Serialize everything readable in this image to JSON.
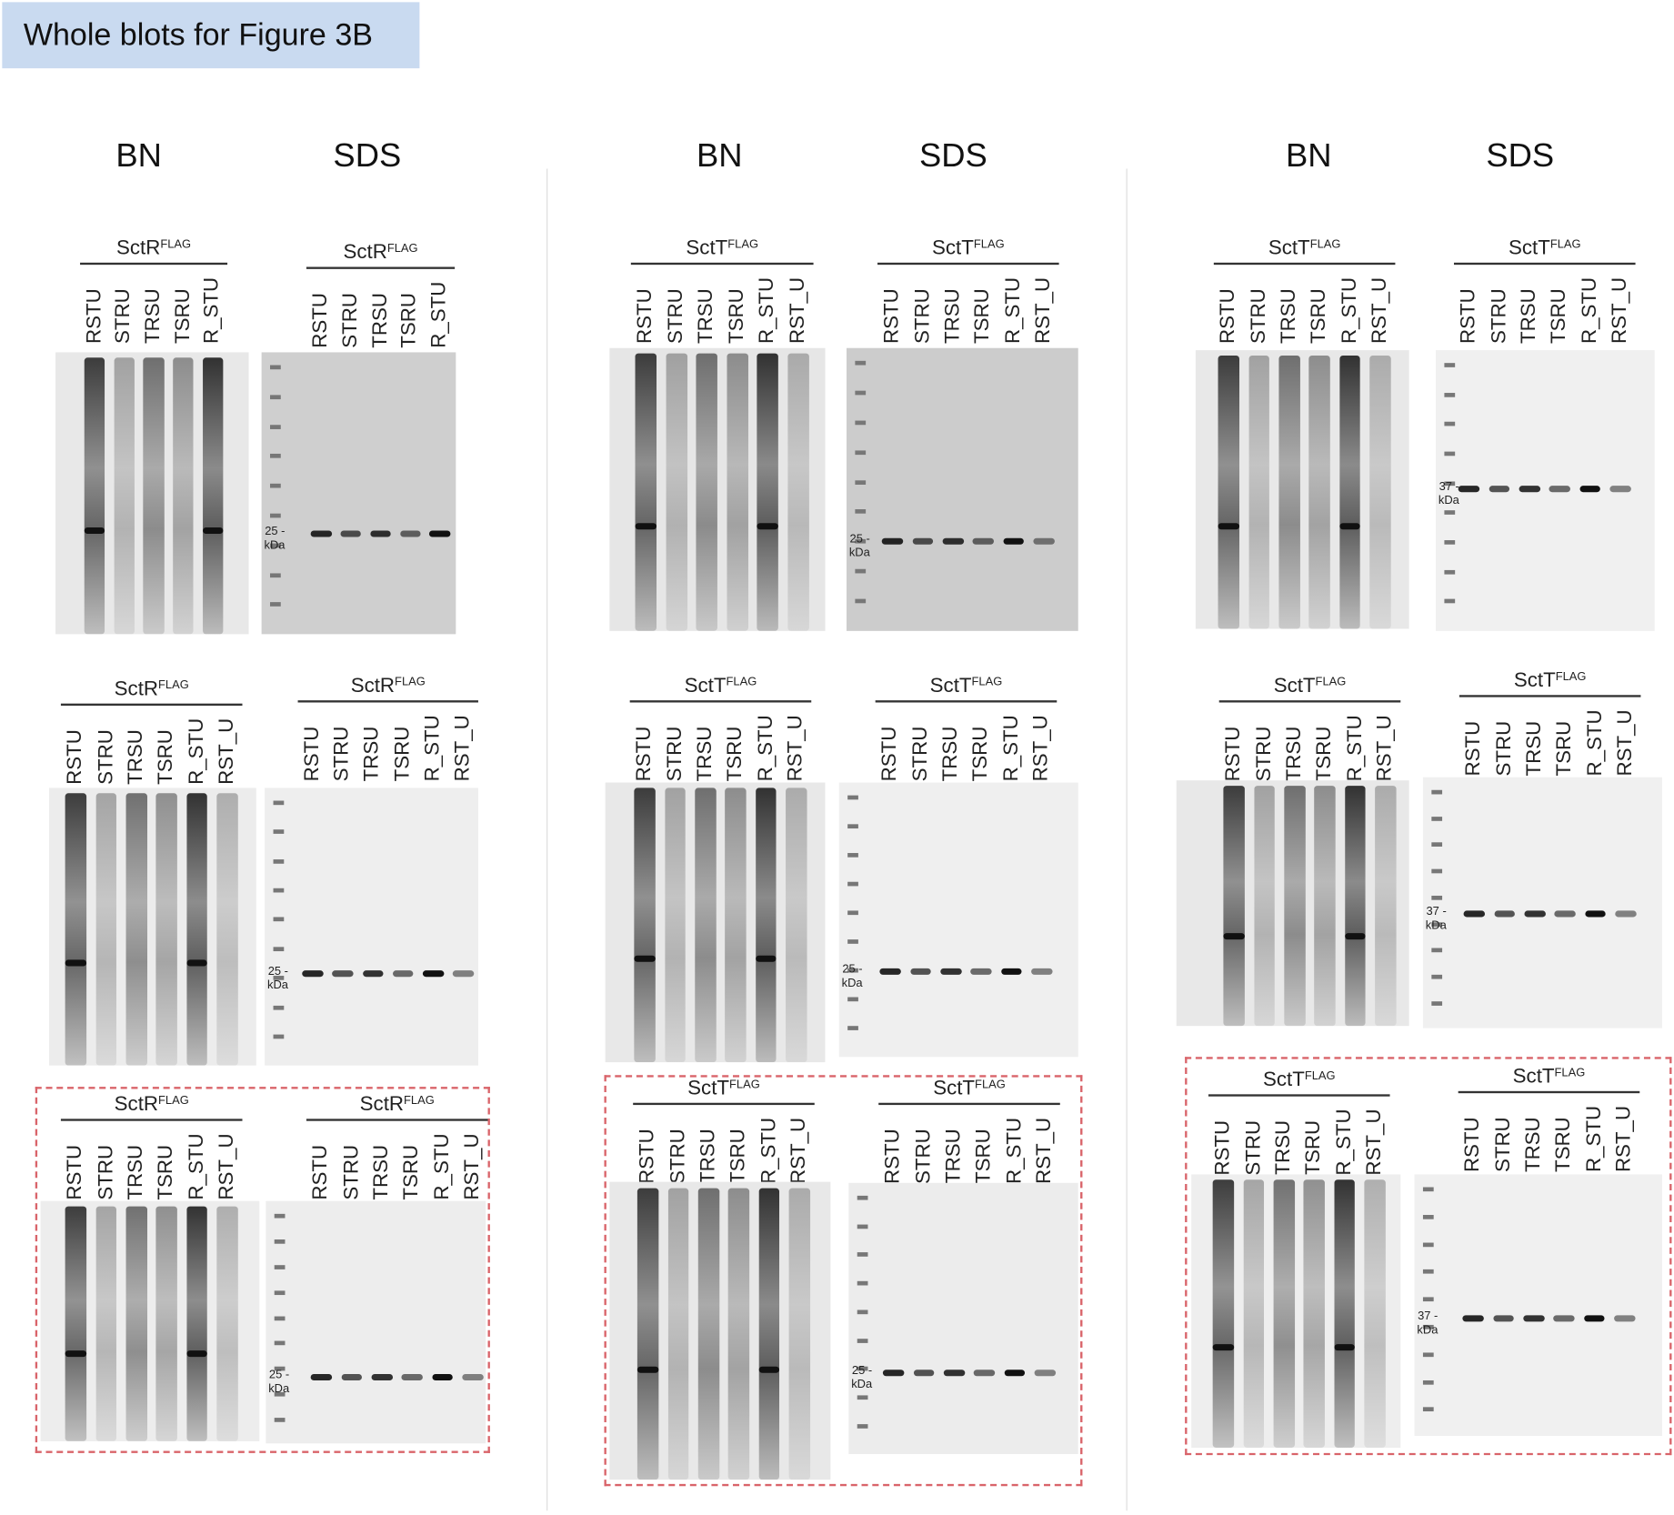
{
  "title": "Whole blots for Figure 3B",
  "column_headers": [
    "BN",
    "SDS",
    "BN",
    "SDS",
    "BN",
    "SDS"
  ],
  "panels": [
    {
      "type": "BN",
      "protein": "SctR",
      "tag": "FLAG",
      "lanes": [
        "RSTU",
        "STRU",
        "TRSU",
        "TSRU",
        "R_STU"
      ]
    },
    {
      "type": "SDS",
      "protein": "SctR",
      "tag": "FLAG",
      "lanes": [
        "RSTU",
        "STRU",
        "TRSU",
        "TSRU",
        "R_STU"
      ],
      "marker": "25 -",
      "unit": "kDa"
    },
    {
      "type": "BN",
      "protein": "SctR",
      "tag": "FLAG",
      "lanes": [
        "RSTU",
        "STRU",
        "TRSU",
        "TSRU",
        "R_STU",
        "RST_U"
      ]
    },
    {
      "type": "SDS",
      "protein": "SctR",
      "tag": "FLAG",
      "lanes": [
        "RSTU",
        "STRU",
        "TRSU",
        "TSRU",
        "R_STU",
        "RST_U"
      ],
      "marker": "25 -",
      "unit": "kDa"
    },
    {
      "type": "BN",
      "protein": "SctR",
      "tag": "FLAG",
      "lanes": [
        "RSTU",
        "STRU",
        "TRSU",
        "TSRU",
        "R_STU",
        "RST_U"
      ]
    },
    {
      "type": "SDS",
      "protein": "SctR",
      "tag": "FLAG",
      "lanes": [
        "RSTU",
        "STRU",
        "TRSU",
        "TSRU",
        "R_STU",
        "RST_U"
      ],
      "marker": "25 -",
      "unit": "kDa"
    },
    {
      "type": "BN",
      "protein": "SctT",
      "tag": "FLAG",
      "lanes": [
        "RSTU",
        "STRU",
        "TRSU",
        "TSRU",
        "R_STU",
        "RST_U"
      ]
    },
    {
      "type": "SDS",
      "protein": "SctT",
      "tag": "FLAG",
      "lanes": [
        "RSTU",
        "STRU",
        "TRSU",
        "TSRU",
        "R_STU",
        "RST_U"
      ],
      "marker": "25 -",
      "unit": "kDa"
    },
    {
      "type": "BN",
      "protein": "SctT",
      "tag": "FLAG",
      "lanes": [
        "RSTU",
        "STRU",
        "TRSU",
        "TSRU",
        "R_STU",
        "RST_U"
      ]
    },
    {
      "type": "SDS",
      "protein": "SctT",
      "tag": "FLAG",
      "lanes": [
        "RSTU",
        "STRU",
        "TRSU",
        "TSRU",
        "R_STU",
        "RST_U"
      ],
      "marker": "25 -",
      "unit": "kDa"
    },
    {
      "type": "BN",
      "protein": "SctT",
      "tag": "FLAG",
      "lanes": [
        "RSTU",
        "STRU",
        "TRSU",
        "TSRU",
        "R_STU",
        "RST_U"
      ]
    },
    {
      "type": "SDS",
      "protein": "SctT",
      "tag": "FLAG",
      "lanes": [
        "RSTU",
        "STRU",
        "TRSU",
        "TSRU",
        "R_STU",
        "RST_U"
      ],
      "marker": "25 -",
      "unit": "kDa"
    },
    {
      "type": "BN",
      "protein": "SctT",
      "tag": "FLAG",
      "lanes": [
        "RSTU",
        "STRU",
        "TRSU",
        "TSRU",
        "R_STU",
        "RST_U"
      ]
    },
    {
      "type": "SDS",
      "protein": "SctT",
      "tag": "FLAG",
      "lanes": [
        "RSTU",
        "STRU",
        "TRSU",
        "TSRU",
        "R_STU",
        "RST_U"
      ],
      "marker": "37 -",
      "unit": "kDa"
    },
    {
      "type": "BN",
      "protein": "SctT",
      "tag": "FLAG",
      "lanes": [
        "RSTU",
        "STRU",
        "TRSU",
        "TSRU",
        "R_STU",
        "RST_U"
      ]
    },
    {
      "type": "SDS",
      "protein": "SctT",
      "tag": "FLAG",
      "lanes": [
        "RSTU",
        "STRU",
        "TRSU",
        "TSRU",
        "R_STU",
        "RST_U"
      ],
      "marker": "37 -",
      "unit": "kDa"
    },
    {
      "type": "BN",
      "protein": "SctT",
      "tag": "FLAG",
      "lanes": [
        "RSTU",
        "STRU",
        "TRSU",
        "TSRU",
        "R_STU",
        "RST_U"
      ]
    },
    {
      "type": "SDS",
      "protein": "SctT",
      "tag": "FLAG",
      "lanes": [
        "RSTU",
        "STRU",
        "TRSU",
        "TSRU",
        "R_STU",
        "RST_U"
      ],
      "marker": "37 -",
      "unit": "kDa"
    }
  ]
}
